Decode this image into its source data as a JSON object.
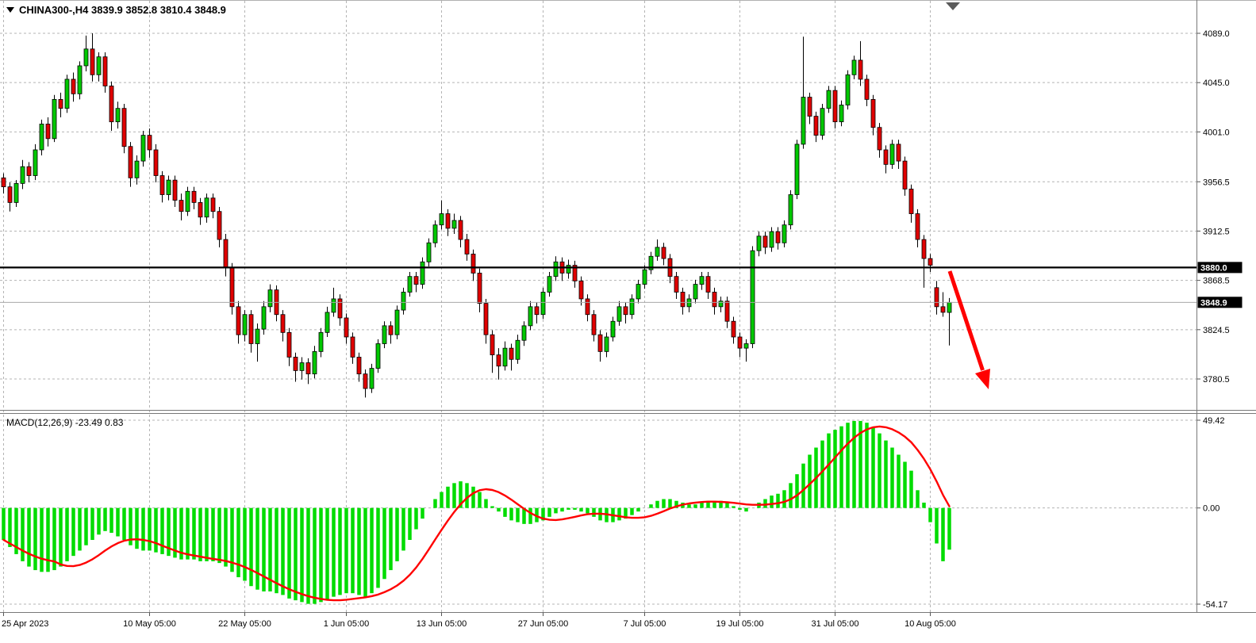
{
  "window": {
    "bg": "#ffffff",
    "bull_color": "#00C800",
    "bear_color": "#E00000",
    "wick_color": "#000000",
    "hist_color": "#00DC00",
    "signal_color": "#FF0000",
    "grid_color": "#B4B4B4",
    "border_color": "#787878",
    "arrow_color": "#FF0000",
    "hline_color": "#000000",
    "bid_line_color": "#A8A8A8",
    "tag_bg": "#000000",
    "tag_fg": "#ffffff"
  },
  "header": {
    "symbol": "CHINA300-",
    "timeframe": "H4",
    "open": "3839.9",
    "high": "3852.8",
    "low": "3810.4",
    "close": "3848.9",
    "display": "CHINA300-,H4  3839.9 3852.8 3810.4 3848.9"
  },
  "macd": {
    "label": "MACD(12,26,9) -23.49 0.83",
    "name": "MACD",
    "params": "12,26,9",
    "main_value": -23.49,
    "signal_value": 0.83,
    "scale": [
      {
        "text": "49.42",
        "value": 49.42
      },
      {
        "text": "0.00",
        "value": 0
      },
      {
        "text": "-54.17",
        "value": -54.17
      }
    ]
  },
  "price_scale": {
    "ticks": [
      {
        "text": "4089.0",
        "value": 4089.0
      },
      {
        "text": "4045.0",
        "value": 4045.0
      },
      {
        "text": "4001.0",
        "value": 4001.0
      },
      {
        "text": "3956.5",
        "value": 3956.5
      },
      {
        "text": "3912.5",
        "value": 3912.5
      },
      {
        "text": "3868.5",
        "value": 3868.5
      },
      {
        "text": "3824.5",
        "value": 3824.5
      },
      {
        "text": "3780.5",
        "value": 3780.5
      }
    ],
    "tags": [
      {
        "text": "3880.0",
        "value": 3880.0
      },
      {
        "text": "3848.9",
        "value": 3848.9
      }
    ]
  },
  "time_scale": {
    "labels": [
      {
        "text": "25 Apr 2023",
        "index": 0
      },
      {
        "text": "10 May 05:00",
        "index": 23
      },
      {
        "text": "22 May 05:00",
        "index": 38
      },
      {
        "text": "1 Jun 05:00",
        "index": 54
      },
      {
        "text": "13 Jun 05:00",
        "index": 69
      },
      {
        "text": "27 Jun 05:00",
        "index": 85
      },
      {
        "text": "7 Jul 05:00",
        "index": 101
      },
      {
        "text": "19 Jul 05:00",
        "index": 116
      },
      {
        "text": "31 Jul 05:00",
        "index": 131
      },
      {
        "text": "10 Aug 05:00",
        "index": 146
      }
    ]
  },
  "annotations": {
    "arrow": {
      "note": "red down-sloping sell arrow",
      "from_price": 3877,
      "to_price": 3782
    },
    "shift_marker": "chart-shift-triangle"
  },
  "chart_data": [
    {
      "type": "candlestick",
      "title": "CHINA300- H4",
      "ylim": [
        3753,
        4119
      ],
      "hline": 3880.0,
      "current_price": 3848.9,
      "candles": [
        [
          3960,
          3964,
          3946,
          3952
        ],
        [
          3952,
          3956,
          3930,
          3938
        ],
        [
          3938,
          3958,
          3934,
          3955
        ],
        [
          3955,
          3976,
          3950,
          3970
        ],
        [
          3970,
          3974,
          3956,
          3962
        ],
        [
          3962,
          3990,
          3958,
          3985
        ],
        [
          3985,
          4012,
          3980,
          4008
        ],
        [
          4008,
          4014,
          3988,
          3995
        ],
        [
          3995,
          4034,
          3992,
          4030
        ],
        [
          4030,
          4036,
          4014,
          4022
        ],
        [
          4022,
          4052,
          4018,
          4048
        ],
        [
          4048,
          4054,
          4028,
          4035
        ],
        [
          4035,
          4064,
          4030,
          4060
        ],
        [
          4060,
          4087,
          4055,
          4075
        ],
        [
          4075,
          4089,
          4046,
          4052
        ],
        [
          4052,
          4072,
          4046,
          4068
        ],
        [
          4068,
          4072,
          4036,
          4042
        ],
        [
          4042,
          4046,
          4002,
          4010
        ],
        [
          4010,
          4028,
          4004,
          4022
        ],
        [
          4022,
          4026,
          3982,
          3988
        ],
        [
          3988,
          3992,
          3952,
          3960
        ],
        [
          3960,
          3980,
          3954,
          3975
        ],
        [
          3975,
          4002,
          3970,
          3998
        ],
        [
          3998,
          4004,
          3978,
          3985
        ],
        [
          3985,
          3990,
          3956,
          3962
        ],
        [
          3962,
          3966,
          3938,
          3945
        ],
        [
          3945,
          3962,
          3940,
          3958
        ],
        [
          3958,
          3962,
          3934,
          3940
        ],
        [
          3940,
          3946,
          3922,
          3930
        ],
        [
          3930,
          3952,
          3926,
          3948
        ],
        [
          3948,
          3952,
          3932,
          3938
        ],
        [
          3938,
          3942,
          3918,
          3925
        ],
        [
          3925,
          3946,
          3920,
          3942
        ],
        [
          3942,
          3946,
          3924,
          3930
        ],
        [
          3930,
          3934,
          3898,
          3905
        ],
        [
          3905,
          3910,
          3872,
          3880
        ],
        [
          3880,
          3884,
          3838,
          3845
        ],
        [
          3845,
          3850,
          3812,
          3820
        ],
        [
          3820,
          3842,
          3814,
          3838
        ],
        [
          3838,
          3842,
          3804,
          3812
        ],
        [
          3812,
          3830,
          3796,
          3825
        ],
        [
          3825,
          3850,
          3820,
          3845
        ],
        [
          3845,
          3865,
          3840,
          3860
        ],
        [
          3860,
          3864,
          3832,
          3838
        ],
        [
          3838,
          3842,
          3814,
          3822
        ],
        [
          3822,
          3826,
          3792,
          3800
        ],
        [
          3800,
          3804,
          3778,
          3788
        ],
        [
          3788,
          3800,
          3780,
          3795
        ],
        [
          3795,
          3799,
          3776,
          3785
        ],
        [
          3785,
          3810,
          3781,
          3805
        ],
        [
          3805,
          3826,
          3800,
          3822
        ],
        [
          3822,
          3845,
          3818,
          3840
        ],
        [
          3840,
          3862,
          3836,
          3852
        ],
        [
          3852,
          3856,
          3828,
          3835
        ],
        [
          3835,
          3839,
          3812,
          3818
        ],
        [
          3818,
          3822,
          3794,
          3800
        ],
        [
          3800,
          3804,
          3778,
          3785
        ],
        [
          3785,
          3789,
          3764,
          3772
        ],
        [
          3772,
          3794,
          3768,
          3790
        ],
        [
          3790,
          3816,
          3786,
          3812
        ],
        [
          3812,
          3832,
          3808,
          3828
        ],
        [
          3828,
          3832,
          3812,
          3820
        ],
        [
          3820,
          3846,
          3816,
          3842
        ],
        [
          3842,
          3862,
          3838,
          3858
        ],
        [
          3858,
          3876,
          3854,
          3872
        ],
        [
          3872,
          3876,
          3858,
          3865
        ],
        [
          3865,
          3889,
          3861,
          3885
        ],
        [
          3885,
          3906,
          3881,
          3902
        ],
        [
          3902,
          3922,
          3898,
          3918
        ],
        [
          3918,
          3940,
          3914,
          3928
        ],
        [
          3928,
          3932,
          3908,
          3915
        ],
        [
          3915,
          3928,
          3910,
          3922
        ],
        [
          3922,
          3926,
          3898,
          3905
        ],
        [
          3905,
          3910,
          3886,
          3892
        ],
        [
          3892,
          3896,
          3868,
          3875
        ],
        [
          3875,
          3879,
          3840,
          3848
        ],
        [
          3848,
          3852,
          3812,
          3820
        ],
        [
          3820,
          3824,
          3786,
          3802
        ],
        [
          3802,
          3808,
          3780,
          3792
        ],
        [
          3792,
          3814,
          3788,
          3808
        ],
        [
          3808,
          3812,
          3788,
          3798
        ],
        [
          3798,
          3820,
          3794,
          3815
        ],
        [
          3815,
          3832,
          3810,
          3828
        ],
        [
          3828,
          3850,
          3824,
          3845
        ],
        [
          3845,
          3849,
          3830,
          3838
        ],
        [
          3838,
          3862,
          3834,
          3858
        ],
        [
          3858,
          3876,
          3854,
          3872
        ],
        [
          3872,
          3890,
          3868,
          3885
        ],
        [
          3885,
          3889,
          3868,
          3875
        ],
        [
          3875,
          3887,
          3870,
          3882
        ],
        [
          3882,
          3886,
          3862,
          3868
        ],
        [
          3868,
          3872,
          3846,
          3852
        ],
        [
          3852,
          3856,
          3832,
          3838
        ],
        [
          3838,
          3842,
          3814,
          3820
        ],
        [
          3820,
          3824,
          3796,
          3805
        ],
        [
          3805,
          3822,
          3800,
          3818
        ],
        [
          3818,
          3836,
          3814,
          3832
        ],
        [
          3832,
          3850,
          3828,
          3845
        ],
        [
          3845,
          3849,
          3830,
          3838
        ],
        [
          3838,
          3856,
          3834,
          3852
        ],
        [
          3852,
          3869,
          3848,
          3865
        ],
        [
          3865,
          3882,
          3861,
          3878
        ],
        [
          3878,
          3894,
          3874,
          3890
        ],
        [
          3890,
          3905,
          3886,
          3898
        ],
        [
          3898,
          3902,
          3882,
          3888
        ],
        [
          3888,
          3892,
          3866,
          3872
        ],
        [
          3872,
          3876,
          3852,
          3858
        ],
        [
          3858,
          3862,
          3838,
          3845
        ],
        [
          3845,
          3856,
          3840,
          3852
        ],
        [
          3852,
          3869,
          3848,
          3865
        ],
        [
          3865,
          3876,
          3860,
          3872
        ],
        [
          3872,
          3876,
          3852,
          3858
        ],
        [
          3858,
          3862,
          3838,
          3845
        ],
        [
          3845,
          3854,
          3840,
          3850
        ],
        [
          3850,
          3854,
          3826,
          3832
        ],
        [
          3832,
          3836,
          3812,
          3818
        ],
        [
          3818,
          3822,
          3800,
          3808
        ],
        [
          3808,
          3816,
          3796,
          3812
        ],
        [
          3812,
          3899,
          3808,
          3895
        ],
        [
          3895,
          3912,
          3890,
          3908
        ],
        [
          3908,
          3912,
          3892,
          3898
        ],
        [
          3898,
          3916,
          3894,
          3912
        ],
        [
          3912,
          3916,
          3896,
          3902
        ],
        [
          3902,
          3922,
          3898,
          3918
        ],
        [
          3918,
          3949,
          3914,
          3945
        ],
        [
          3945,
          3994,
          3941,
          3990
        ],
        [
          3990,
          4086,
          3986,
          4032
        ],
        [
          4032,
          4036,
          4008,
          4015
        ],
        [
          4015,
          4019,
          3992,
          3998
        ],
        [
          3998,
          4026,
          3994,
          4022
        ],
        [
          4022,
          4042,
          4018,
          4038
        ],
        [
          4038,
          4042,
          4004,
          4010
        ],
        [
          4010,
          4029,
          4006,
          4025
        ],
        [
          4025,
          4056,
          4021,
          4052
        ],
        [
          4052,
          4069,
          4048,
          4065
        ],
        [
          4065,
          4082,
          4042,
          4048
        ],
        [
          4048,
          4052,
          4024,
          4030
        ],
        [
          4030,
          4034,
          3998,
          4005
        ],
        [
          4005,
          4009,
          3978,
          3985
        ],
        [
          3985,
          3989,
          3964,
          3972
        ],
        [
          3972,
          3994,
          3968,
          3990
        ],
        [
          3990,
          3994,
          3968,
          3975
        ],
        [
          3975,
          3979,
          3944,
          3950
        ],
        [
          3950,
          3954,
          3920,
          3928
        ],
        [
          3928,
          3932,
          3898,
          3905
        ],
        [
          3905,
          3909,
          3862,
          3888
        ],
        [
          3888,
          3892,
          3876,
          3882
        ],
        [
          3862,
          3868,
          3838,
          3845
        ],
        [
          3845,
          3858,
          3836,
          3840
        ],
        [
          3839.9,
          3852.8,
          3810.4,
          3848.9
        ]
      ]
    },
    {
      "type": "bar",
      "title": "MACD(12,26,9) histogram",
      "ylim": [
        -54.17,
        49.42
      ],
      "signal_sma_period": 9,
      "values": [
        -18,
        -22,
        -26,
        -30,
        -33,
        -35,
        -36,
        -36,
        -35,
        -33,
        -30,
        -27,
        -24,
        -21,
        -18,
        -15,
        -13,
        -14,
        -16,
        -18,
        -21,
        -23,
        -24,
        -24,
        -25,
        -26,
        -27,
        -28,
        -29,
        -29,
        -29,
        -30,
        -30,
        -30,
        -31,
        -33,
        -36,
        -39,
        -41,
        -44,
        -46,
        -47,
        -47,
        -48,
        -49,
        -51,
        -52,
        -53,
        -54,
        -54,
        -53,
        -52,
        -50,
        -49,
        -48,
        -48,
        -49,
        -50,
        -48,
        -45,
        -40,
        -35,
        -30,
        -24,
        -18,
        -12,
        -6,
        0,
        5,
        9,
        12,
        14,
        15,
        14,
        12,
        9,
        5,
        1,
        -2,
        -5,
        -7,
        -8,
        -9,
        -9,
        -8,
        -7,
        -5,
        -3,
        -2,
        -1,
        -1,
        -2,
        -3,
        -5,
        -7,
        -8,
        -8,
        -7,
        -6,
        -4,
        -2,
        0,
        2,
        4,
        5,
        5,
        4,
        3,
        2,
        2,
        3,
        4,
        4,
        4,
        3,
        1,
        -1,
        -2,
        0,
        3,
        5,
        7,
        8,
        10,
        14,
        19,
        25,
        30,
        34,
        38,
        42,
        44,
        46,
        48,
        49,
        49,
        48,
        45,
        42,
        38,
        34,
        30,
        26,
        21,
        10,
        3,
        -8,
        -20,
        -30,
        -23.49
      ]
    }
  ]
}
